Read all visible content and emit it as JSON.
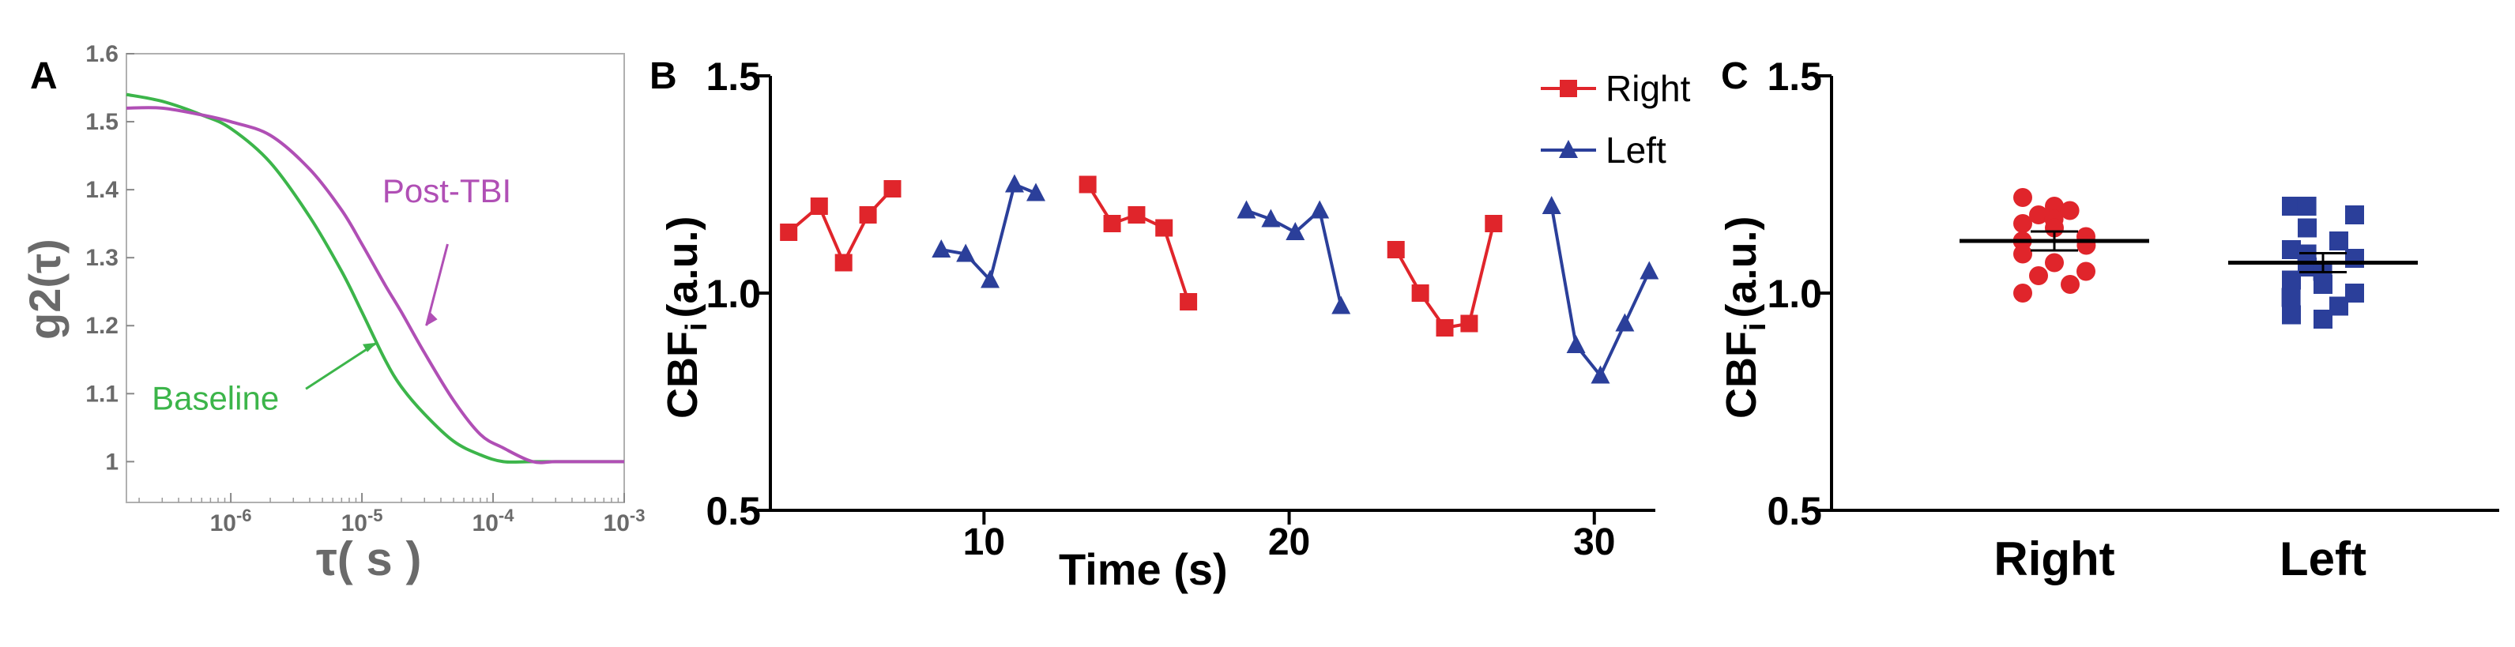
{
  "colors": {
    "red": "#e0252b",
    "blue": "#2b3f9a",
    "green": "#3cb54a",
    "magenta": "#b04fb5",
    "axis": "#000000",
    "axisA": "#6a6a6a"
  },
  "chart_data": [
    {
      "panel": "A",
      "type": "line",
      "xscale": "log",
      "xlabel": "τ( s )",
      "ylabel": "g2(τ)",
      "xlim": [
        1.6e-07,
        0.001
      ],
      "ylim": [
        0.94,
        1.6
      ],
      "xtick_labels": [
        "10-6",
        "10-5",
        "10-4",
        "10-3"
      ],
      "ytick_labels": [
        "1",
        "1.1",
        "1.2",
        "1.3",
        "1.4",
        "1.5",
        "1.6"
      ],
      "series": [
        {
          "name": "Baseline",
          "x": [
            1.6e-07,
            3e-07,
            6e-07,
            1e-06,
            2e-06,
            4e-06,
            7e-06,
            1e-05,
            1.5e-05,
            2e-05,
            3e-05,
            5e-05,
            8e-05,
            0.00012,
            0.0002,
            0.0005,
            0.001
          ],
          "y": [
            1.54,
            1.53,
            1.51,
            1.49,
            1.44,
            1.36,
            1.28,
            1.22,
            1.15,
            1.11,
            1.07,
            1.03,
            1.01,
            1.0,
            1.0,
            1.0,
            1.0
          ]
        },
        {
          "name": "Post-TBI",
          "x": [
            1.6e-07,
            3e-07,
            6e-07,
            1e-06,
            2e-06,
            4e-06,
            7e-06,
            1e-05,
            1.5e-05,
            2e-05,
            3e-05,
            5e-05,
            8e-05,
            0.00012,
            0.0002,
            0.0003,
            0.0005,
            0.001
          ],
          "y": [
            1.52,
            1.52,
            1.51,
            1.5,
            1.48,
            1.43,
            1.37,
            1.32,
            1.26,
            1.22,
            1.16,
            1.09,
            1.04,
            1.02,
            1.0,
            1.0,
            1.0,
            1.0
          ]
        }
      ],
      "annotations": [
        {
          "text": "Post-TBI",
          "x": 3e-05,
          "y": 1.37
        },
        {
          "text": "Baseline",
          "x": 1e-06,
          "y": 1.1
        }
      ]
    },
    {
      "panel": "B",
      "type": "line",
      "xlabel": "Time (s)",
      "ylabel": "CBFi (a.u.)",
      "ylabel_main": "CBF",
      "ylabel_sub": "i",
      "ylabel_tail": "(a.u.)",
      "xlim": [
        3,
        32
      ],
      "ylim": [
        0.5,
        1.5
      ],
      "xticks": [
        10,
        20,
        30
      ],
      "xtick_labels": [
        "10",
        "20",
        "30"
      ],
      "yticks": [
        0.5,
        1.0,
        1.5
      ],
      "ytick_labels": [
        "0.5",
        "1.0",
        "1.5"
      ],
      "legend": {
        "position": "top-right"
      },
      "series": [
        {
          "name": "Right",
          "marker": "square",
          "segments": [
            {
              "x": [
                3.6,
                4.6,
                5.4,
                6.2,
                7.0
              ],
              "y": [
                1.14,
                1.2,
                1.07,
                1.18,
                1.24
              ]
            },
            {
              "x": [
                13.4,
                14.2,
                15.0,
                15.9,
                16.7
              ],
              "y": [
                1.25,
                1.16,
                1.18,
                1.15,
                0.98
              ]
            },
            {
              "x": [
                23.5,
                24.3,
                25.1,
                25.9,
                26.7
              ],
              "y": [
                1.1,
                1.0,
                0.92,
                0.93,
                1.16
              ]
            }
          ]
        },
        {
          "name": "Left",
          "marker": "triangle",
          "segments": [
            {
              "x": [
                8.6,
                9.4,
                10.2,
                11.0,
                11.7
              ],
              "y": [
                1.1,
                1.09,
                1.03,
                1.25,
                1.23
              ]
            },
            {
              "x": [
                18.6,
                19.4,
                20.2,
                21.0,
                21.7
              ],
              "y": [
                1.19,
                1.17,
                1.14,
                1.19,
                0.97
              ]
            },
            {
              "x": [
                28.6,
                29.4,
                30.2,
                31.0,
                31.8
              ],
              "y": [
                1.2,
                0.88,
                0.81,
                0.93,
                1.05
              ]
            }
          ]
        }
      ]
    },
    {
      "panel": "C",
      "type": "scatter",
      "ylabel": "CBFi (a.u.)",
      "ylabel_main": "CBF",
      "ylabel_sub": "i",
      "ylabel_tail": "(a.u.)",
      "ylim": [
        0.5,
        1.5
      ],
      "yticks": [
        0.5,
        1.0,
        1.5
      ],
      "ytick_labels": [
        "0.5",
        "1.0",
        "1.5"
      ],
      "categories": [
        "Right",
        "Left"
      ],
      "groups": [
        {
          "name": "Right",
          "marker": "circle",
          "mean": 1.12,
          "values": [
            1.22,
            1.2,
            1.19,
            1.18,
            1.17,
            1.16,
            1.15,
            1.13,
            1.12,
            1.11,
            1.09,
            1.07,
            1.05,
            1.04,
            1.02,
            1.0
          ]
        },
        {
          "name": "Left",
          "marker": "square",
          "mean": 1.07,
          "values": [
            1.2,
            1.2,
            1.18,
            1.15,
            1.12,
            1.1,
            1.09,
            1.08,
            1.06,
            1.05,
            1.03,
            1.02,
            1.0,
            0.99,
            0.97,
            0.95,
            0.94
          ]
        }
      ]
    }
  ]
}
